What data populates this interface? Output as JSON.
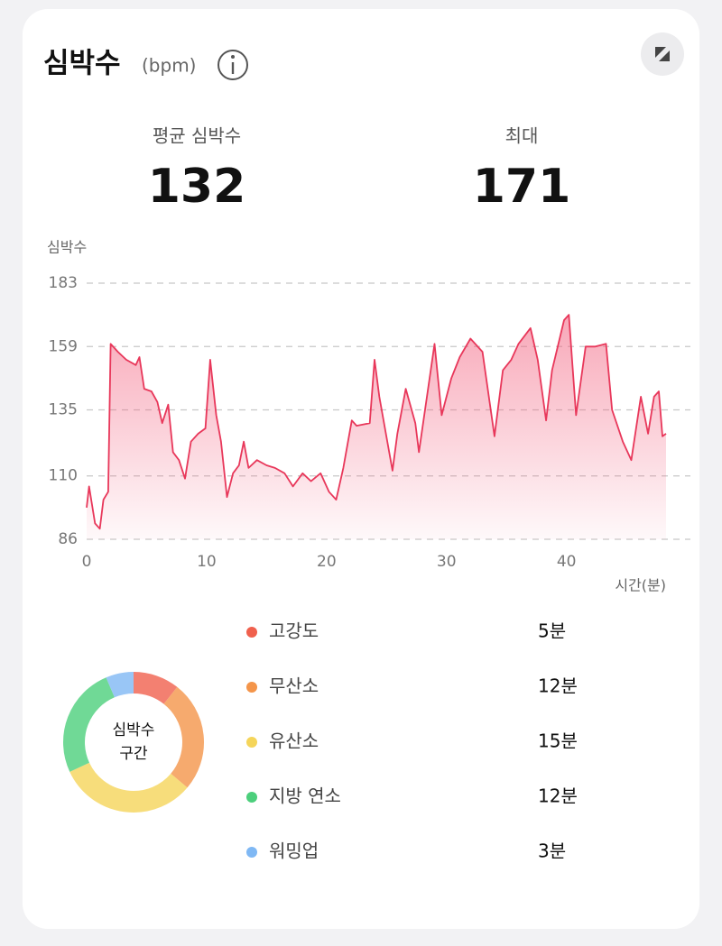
{
  "header": {
    "title": "심박수",
    "unit": "(bpm)"
  },
  "stats": [
    {
      "label": "평균 심박수",
      "value": 132
    },
    {
      "label": "최대",
      "value": 171
    }
  ],
  "chart_data": [
    {
      "type": "line",
      "y_label": "심박수",
      "x_label": "시간(분)",
      "x": [
        0,
        0.2,
        0.7,
        1.1,
        1.4,
        1.8,
        2.0,
        2.6,
        3.3,
        4.1,
        4.4,
        4.8,
        5.4,
        5.9,
        6.3,
        6.8,
        7.2,
        7.7,
        8.2,
        8.7,
        9.3,
        9.9,
        10.3,
        10.8,
        11.2,
        11.7,
        12.2,
        12.7,
        13.1,
        13.5,
        14.2,
        15.0,
        15.7,
        16.5,
        17.2,
        18.0,
        18.7,
        19.5,
        20.2,
        20.8,
        21.4,
        22.1,
        22.5,
        23.6,
        24.0,
        24.4,
        25.5,
        25.9,
        26.6,
        27.4,
        27.7,
        29.0,
        29.6,
        30.4,
        31.1,
        32.0,
        33.0,
        34.0,
        34.7,
        35.4,
        36.0,
        37.0,
        37.6,
        38.3,
        38.8,
        39.8,
        40.2,
        40.8,
        41.6,
        42.4,
        43.3,
        43.8,
        44.7,
        45.4,
        46.2,
        46.8,
        47.3,
        47.7,
        48.0,
        48.3
      ],
      "values": [
        98,
        106,
        92,
        90,
        101,
        104,
        160,
        157,
        154,
        152,
        155,
        143,
        142,
        138,
        130,
        137,
        119,
        116,
        109,
        123,
        126,
        128,
        154,
        133,
        123,
        102,
        111,
        114,
        123,
        113,
        116,
        114,
        113,
        111,
        106,
        111,
        108,
        111,
        104,
        101,
        113,
        131,
        129,
        130,
        154,
        140,
        112,
        126,
        143,
        130,
        119,
        160,
        133,
        147,
        155,
        162,
        157,
        125,
        150,
        154,
        160,
        166,
        154,
        131,
        150,
        169,
        171,
        133,
        159,
        159,
        160,
        135,
        123,
        116,
        140,
        126,
        140,
        142,
        125,
        126
      ],
      "color": "#e8375a",
      "xlim": [
        0,
        48.3
      ],
      "xticks": [
        0,
        10,
        20,
        30,
        40
      ],
      "ylim": [
        86,
        183
      ],
      "yticks": [
        86,
        110,
        135,
        159,
        183
      ],
      "grid": true
    },
    {
      "type": "pie",
      "donut": true,
      "center_label": [
        "심박수",
        "구간"
      ],
      "categories": [
        "고강도",
        "무산소",
        "유산소",
        "지방 연소",
        "워밍업"
      ],
      "values": [
        5,
        12,
        15,
        12,
        3
      ],
      "value_labels": [
        "5분",
        "12분",
        "15분",
        "12분",
        "3분"
      ],
      "colors": [
        "#f0604d",
        "#f4954a",
        "#f5d55a",
        "#4ccf7c",
        "#7fb8f4"
      ]
    }
  ]
}
